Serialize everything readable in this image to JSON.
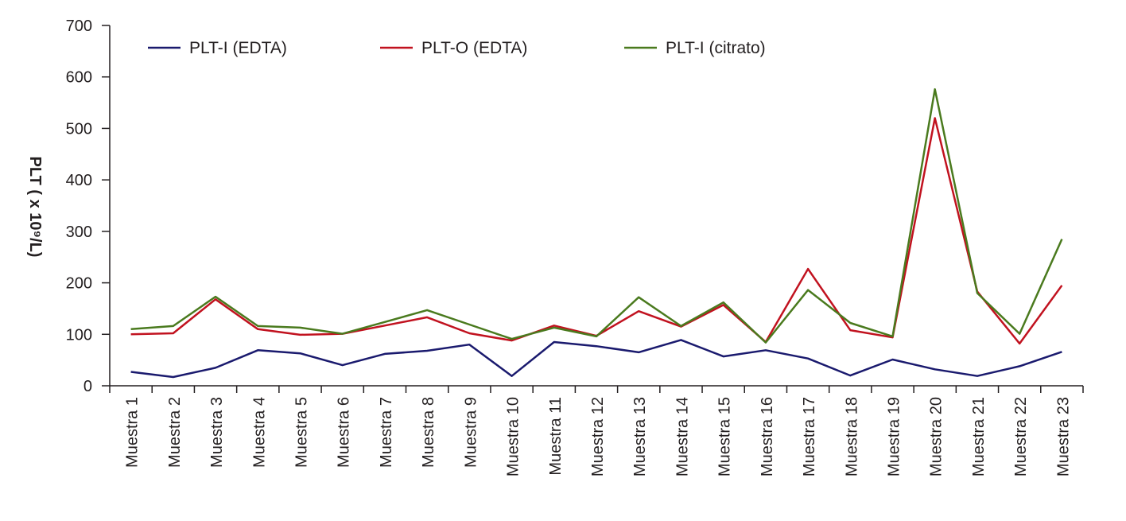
{
  "chart_data": {
    "type": "line",
    "title": "",
    "xlabel": "",
    "ylabel": "PLT ( x 10⁹/L)",
    "ylim": [
      0,
      700
    ],
    "yticks": [
      0,
      100,
      200,
      300,
      400,
      500,
      600,
      700
    ],
    "grid": false,
    "legend_position": "top",
    "categories": [
      "Muestra 1",
      "Muestra 2",
      "Muestra 3",
      "Muestra 4",
      "Muestra 5",
      "Muestra 6",
      "Muestra 7",
      "Muestra 8",
      "Muestra 9",
      "Muestra 10",
      "Muestra 11",
      "Muestra 12",
      "Muestra 13",
      "Muestra 14",
      "Muestra 15",
      "Muestra 16",
      "Muestra 17",
      "Muestra 18",
      "Muestra 19",
      "Muestra 20",
      "Muestra 21",
      "Muestra 22",
      "Muestra 23"
    ],
    "series": [
      {
        "name": "PLT-I (EDTA)",
        "color": "#1a1a6e",
        "values": [
          27,
          17,
          35,
          69,
          63,
          40,
          62,
          68,
          80,
          19,
          85,
          77,
          65,
          89,
          57,
          69,
          53,
          20,
          51,
          32,
          19,
          38,
          66
        ]
      },
      {
        "name": "PLT-O (EDTA)",
        "color": "#c1121f",
        "values": [
          100,
          102,
          168,
          110,
          99,
          101,
          117,
          133,
          102,
          88,
          117,
          97,
          145,
          115,
          157,
          85,
          227,
          108,
          94,
          520,
          183,
          82,
          195
        ]
      },
      {
        "name": "PLT-I (citrato)",
        "color": "#4a7a1e",
        "values": [
          110,
          116,
          173,
          116,
          113,
          101,
          124,
          147,
          119,
          91,
          113,
          96,
          172,
          116,
          162,
          84,
          186,
          122,
          96,
          576,
          180,
          101,
          285
        ]
      }
    ]
  }
}
